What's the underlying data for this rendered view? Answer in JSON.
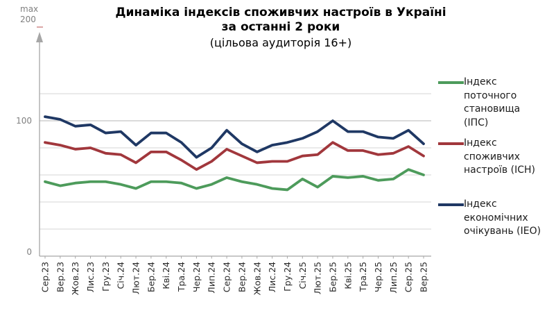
{
  "chart": {
    "title_line1": "Динаміка індексів споживчих настроїв в Україні",
    "title_line2": "за останні 2 роки",
    "subtitle": "(цільова аудиторія 16+)",
    "y_axis_max_caption": "max",
    "y_axis_max_value": "200"
  },
  "chart_data": {
    "type": "line",
    "title": "Динаміка індексів споживчих настроїв в Україні за останні 2 роки",
    "subtitle": "(цільова аудиторія 16+)",
    "categories": [
      "Сер.23",
      "Вер.23",
      "Жов.23",
      "Лис.23",
      "Гру.23",
      "Січ.24",
      "Лют.24",
      "Бер.24",
      "Кві.24",
      "Тра.24",
      "Чер.24",
      "Лип.24",
      "Сер.24",
      "Вер.24",
      "Жов.24",
      "Лис.24",
      "Гру.24",
      "Січ.25",
      "Лют.25",
      "Бер.25",
      "Кві.25",
      "Тра.25",
      "Чер.25",
      "Лип.25",
      "Сер.25",
      "Вер.25"
    ],
    "series": [
      {
        "key": "ips",
        "name": "Індекс поточного становища (ІПС)",
        "label_lines": [
          "Індекс",
          "поточного",
          "становища",
          "(ІПС)"
        ],
        "color": "#4d9b5b",
        "values": [
          55,
          52,
          54,
          55,
          55,
          53,
          50,
          55,
          55,
          54,
          50,
          53,
          58,
          55,
          53,
          50,
          49,
          57,
          51,
          59,
          58,
          59,
          56,
          57,
          64,
          60
        ]
      },
      {
        "key": "isn",
        "name": "Індекс споживчих настроїв (ІСН)",
        "label_lines": [
          "Індекс",
          "споживчих",
          "настроїв (ІСН)"
        ],
        "color": "#a1373c",
        "values": [
          84,
          82,
          79,
          80,
          76,
          75,
          69,
          77,
          77,
          71,
          64,
          70,
          79,
          74,
          69,
          70,
          70,
          74,
          75,
          84,
          78,
          78,
          75,
          76,
          81,
          74
        ]
      },
      {
        "key": "ieo",
        "name": "Індекс економічних очікувань (ІЕО)",
        "label_lines": [
          "Індекс",
          "економічних",
          "очікувань (ІЕО)"
        ],
        "color": "#1f3864",
        "values": [
          103,
          101,
          96,
          97,
          91,
          92,
          82,
          91,
          91,
          84,
          73,
          80,
          93,
          83,
          77,
          82,
          84,
          87,
          92,
          100,
          92,
          92,
          88,
          87,
          93,
          83
        ]
      }
    ],
    "y_axis": {
      "min": 0,
      "max": 200,
      "max_label": "max 200",
      "labeled_ticks": [
        0,
        100
      ],
      "gridline_values": [
        20,
        40,
        60,
        80,
        100,
        120
      ]
    },
    "grid": true,
    "legend_position": "right",
    "x_labels_rotated": true
  }
}
